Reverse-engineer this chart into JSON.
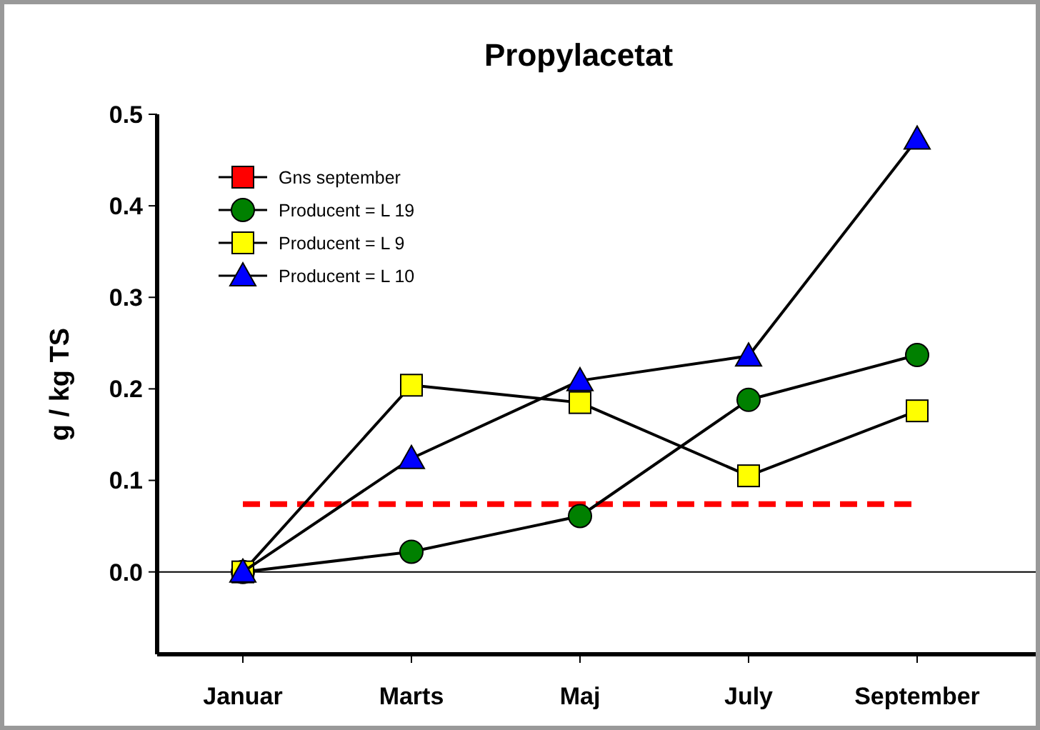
{
  "chart_data": {
    "type": "line",
    "title": "Propylacetat",
    "ylabel": "g / kg TS",
    "categories": [
      "Januar",
      "Marts",
      "Maj",
      "July",
      "September"
    ],
    "series": [
      {
        "name": "Gns september",
        "color": "#ff0000",
        "values": [
          0.074,
          0.074,
          0.074,
          0.074,
          0.074
        ],
        "line_style": "dashed",
        "marker": "none"
      },
      {
        "name": "Producent = L 19",
        "color": "#008000",
        "values": [
          0,
          0.022,
          0.061,
          0.188,
          0.237
        ],
        "marker": "circle"
      },
      {
        "name": "Producent = L 9",
        "color": "#ffff00",
        "values": [
          0,
          0.204,
          0.185,
          0.105,
          0.176
        ],
        "marker": "square"
      },
      {
        "name": "Producent = L 10",
        "color": "#0000ff",
        "values": [
          0,
          0.124,
          0.209,
          0.236,
          0.473
        ],
        "marker": "triangle"
      }
    ],
    "ylim": [
      -0.09,
      0.5
    ],
    "yticks": [
      {
        "value": 0,
        "label": "0.0"
      },
      0.1,
      0.2,
      0.3,
      0.4,
      0.5
    ],
    "ref_lines": [
      {
        "axis": "y",
        "value": 0
      }
    ],
    "grid": false,
    "legend": "top left"
  }
}
